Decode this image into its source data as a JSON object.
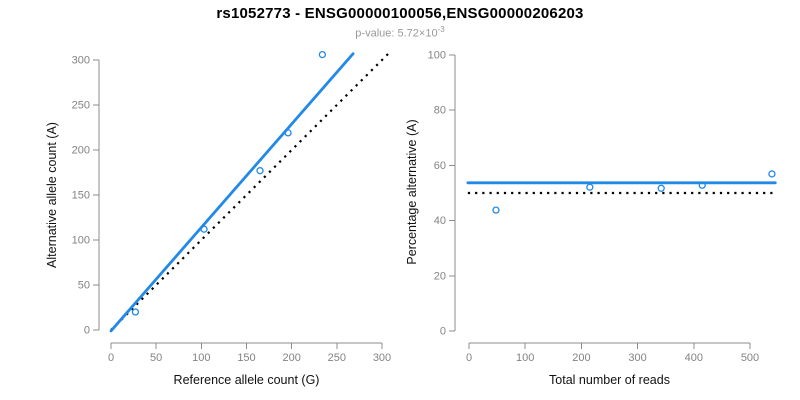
{
  "header": {
    "title": "rs1052773 - ENSG00000100056,ENSG00000206203",
    "subtitle_prefix": "p-value: ",
    "subtitle_base": "5.72×10",
    "subtitle_exponent": "-3"
  },
  "colors": {
    "accent_blue": "#2289e8",
    "dotted_black": "#000000",
    "axis_gray": "#8c8c8c",
    "tick_text_gray": "#838383",
    "axis_title_black": "#111111",
    "subtitle_gray": "#999999"
  },
  "chart_data": [
    {
      "type": "scatter",
      "name": "allele-counts-plot",
      "xlabel": "Reference allele count (G)",
      "ylabel": "Alternative allele count (A)",
      "xlim": [
        0,
        300
      ],
      "ylim": [
        0,
        300
      ],
      "xticks": [
        0,
        50,
        100,
        150,
        200,
        250,
        300
      ],
      "yticks": [
        0,
        50,
        100,
        150,
        200,
        250,
        300
      ],
      "grid": false,
      "points": [
        [
          27,
          20
        ],
        [
          103,
          112
        ],
        [
          165,
          177
        ],
        [
          196,
          219
        ],
        [
          234,
          306
        ]
      ],
      "lines": [
        {
          "name": "identity-line",
          "style": "dotted",
          "color_key": "dotted_black",
          "points": [
            [
              0,
              0
            ],
            [
              309,
              309
            ]
          ]
        },
        {
          "name": "fit-line",
          "style": "solid",
          "color_key": "accent_blue",
          "points": [
            [
              0,
              -1
            ],
            [
              268,
              307
            ]
          ]
        }
      ]
    },
    {
      "type": "scatter",
      "name": "percentage-plot",
      "xlabel": "Total number of reads",
      "ylabel": "Percentage alternative (A)",
      "xlim": [
        0,
        500
      ],
      "ylim": [
        0,
        100
      ],
      "xticks": [
        0,
        100,
        200,
        300,
        400,
        500
      ],
      "yticks": [
        0,
        20,
        40,
        60,
        80,
        100
      ],
      "grid": false,
      "points": [
        [
          48,
          43.8
        ],
        [
          215,
          52.1
        ],
        [
          342,
          51.7
        ],
        [
          415,
          52.8
        ],
        [
          539,
          56.9
        ]
      ],
      "lines": [
        {
          "name": "expected-50pct-line",
          "style": "dotted",
          "color_key": "dotted_black",
          "points": [
            [
              -2,
              50
            ],
            [
              545,
              50
            ]
          ]
        },
        {
          "name": "mean-percentage-line",
          "style": "solid",
          "color_key": "accent_blue",
          "points": [
            [
              -2,
              53.7
            ],
            [
              545,
              53.7
            ]
          ]
        }
      ]
    }
  ]
}
